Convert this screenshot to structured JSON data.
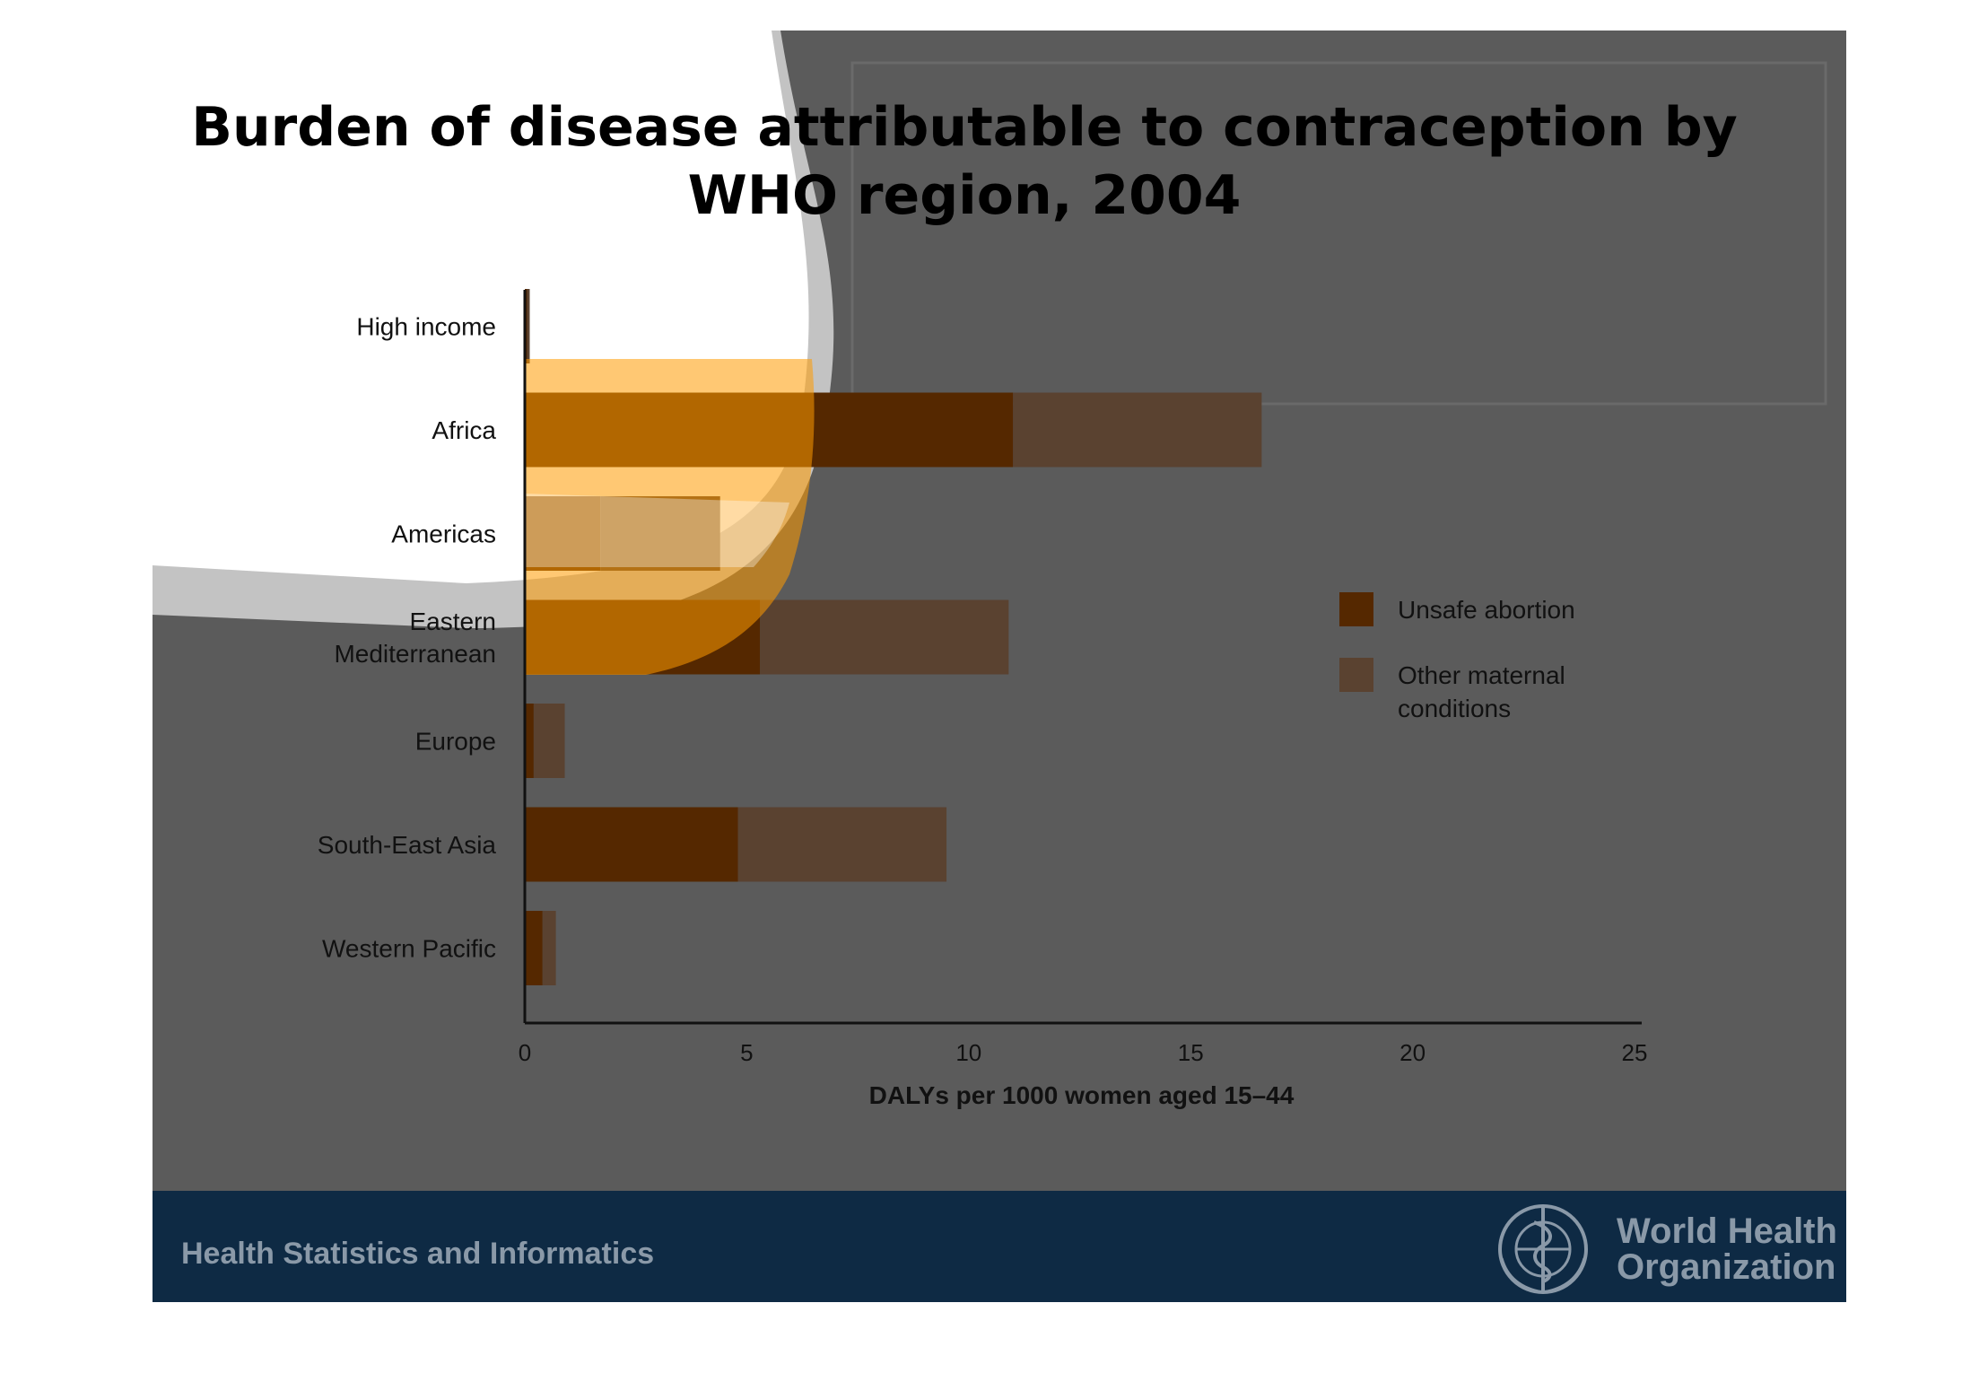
{
  "slide": {
    "title_lines": [
      "Burden of disease attributable to contraception by",
      "WHO region, 2004"
    ],
    "footer_text": "Health Statistics and Informatics",
    "org_name_lines": [
      "World Health",
      "Organization"
    ],
    "colors": {
      "background": "#5b5b5b",
      "footer_band": "#0e2a44",
      "unsafe_abortion": "#552800",
      "other_maternal": "#5a4230"
    }
  },
  "chart_data": {
    "type": "bar",
    "orientation": "horizontal",
    "stacked": true,
    "categories": [
      "High income",
      "Africa",
      "Americas",
      "Eastern\nMediterranean",
      "Europe",
      "South-East Asia",
      "Western Pacific"
    ],
    "series": [
      {
        "name": "Unsafe abortion",
        "values": [
          0.05,
          11.0,
          1.7,
          5.3,
          0.2,
          4.8,
          0.4
        ],
        "color": "#552800"
      },
      {
        "name": "Other maternal\nconditions",
        "values": [
          0.05,
          5.6,
          2.7,
          5.6,
          0.7,
          4.7,
          0.3
        ],
        "color": "#5a4230"
      }
    ],
    "xlabel": "DALYs per 1000 women aged 15–44",
    "xlim": [
      0,
      25
    ],
    "xticks": [
      0,
      5,
      10,
      15,
      20,
      25
    ],
    "legend_position": "right",
    "grid": false
  }
}
